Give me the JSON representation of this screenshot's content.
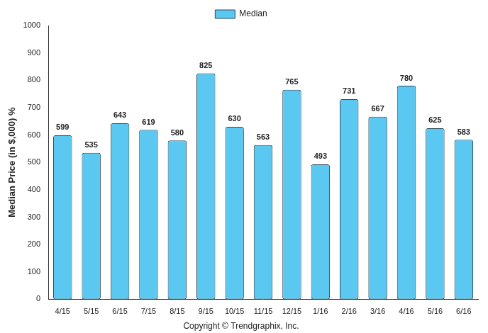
{
  "chart_data": {
    "type": "bar",
    "y_label": "Median Price (in $,000) %",
    "annotation": "Copyright © Trendgraphix, Inc.",
    "categories": [
      "4/15",
      "5/15",
      "6/15",
      "7/15",
      "8/15",
      "9/15",
      "10/15",
      "11/15",
      "12/15",
      "1/16",
      "2/16",
      "3/16",
      "4/16",
      "5/16",
      "6/16"
    ],
    "series": [
      {
        "name": "Median",
        "color": "#5bc8f2",
        "values": [
          599,
          535,
          643,
          619,
          580,
          825,
          630,
          563,
          765,
          493,
          731,
          667,
          780,
          625,
          583
        ]
      }
    ],
    "ylim": [
      0,
      1000
    ],
    "yticks": [
      0,
      100,
      200,
      300,
      400,
      500,
      600,
      700,
      800,
      900,
      1000
    ],
    "grid": false,
    "legend": "top",
    "data_labels": true
  }
}
